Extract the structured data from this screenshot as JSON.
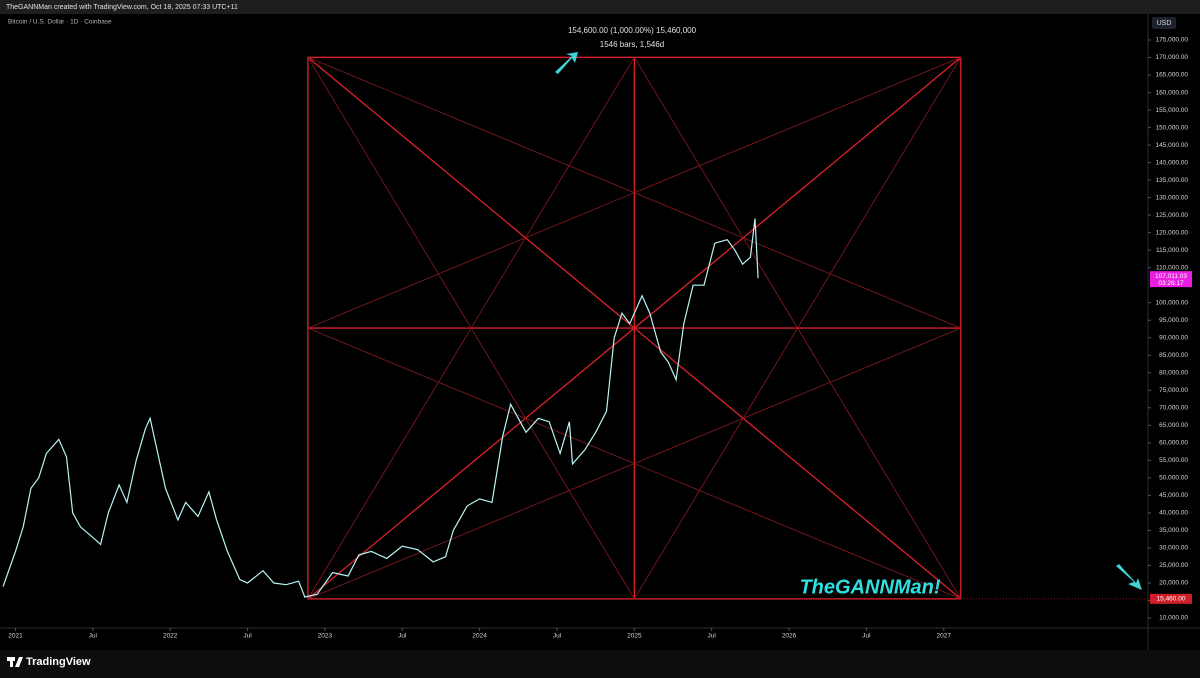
{
  "header": {
    "credit": "TheGANNMan created with TradingView.com, Oct 18, 2025 07:33 UTC+11",
    "brand": "TradingView"
  },
  "chart_data": {
    "type": "line",
    "series": [
      {
        "name": "Bitcoin / U.S. Dollar · 1D · Coinbase",
        "color": "#b8f4f4",
        "x": [
          2020.92,
          2021.0,
          2021.05,
          2021.1,
          2021.15,
          2021.2,
          2021.28,
          2021.33,
          2021.37,
          2021.42,
          2021.5,
          2021.55,
          2021.6,
          2021.67,
          2021.72,
          2021.78,
          2021.84,
          2021.87,
          2021.92,
          2021.97,
          2022.05,
          2022.1,
          2022.18,
          2022.25,
          2022.3,
          2022.37,
          2022.45,
          2022.5,
          2022.6,
          2022.67,
          2022.75,
          2022.83,
          2022.87,
          2022.95,
          2023.05,
          2023.15,
          2023.22,
          2023.3,
          2023.4,
          2023.5,
          2023.6,
          2023.7,
          2023.78,
          2023.83,
          2023.92,
          2024.0,
          2024.08,
          2024.15,
          2024.2,
          2024.3,
          2024.38,
          2024.45,
          2024.52,
          2024.58,
          2024.6,
          2024.68,
          2024.75,
          2024.82,
          2024.87,
          2024.92,
          2024.97,
          2025.05,
          2025.1,
          2025.17,
          2025.22,
          2025.27,
          2025.32,
          2025.38,
          2025.45,
          2025.52,
          2025.6,
          2025.65,
          2025.7,
          2025.75,
          2025.78,
          2025.8
        ],
        "values": [
          19000,
          29000,
          36000,
          47000,
          50000,
          57000,
          61000,
          56000,
          40000,
          36000,
          33000,
          31000,
          40000,
          48000,
          43000,
          55000,
          64000,
          67000,
          57000,
          47000,
          38000,
          43000,
          39000,
          46000,
          38000,
          29000,
          21000,
          20000,
          23500,
          20000,
          19500,
          20500,
          16000,
          16800,
          23000,
          22000,
          28000,
          29000,
          27000,
          30500,
          29500,
          26000,
          27500,
          35000,
          42000,
          44000,
          43000,
          62000,
          71000,
          63000,
          67000,
          66000,
          57000,
          66000,
          54000,
          58000,
          63000,
          69000,
          90000,
          97000,
          94000,
          102000,
          97000,
          86000,
          83000,
          78000,
          94000,
          105000,
          105000,
          117000,
          118000,
          115000,
          111000,
          113000,
          124000,
          107011.03
        ]
      }
    ],
    "current_price": {
      "value": 107011.03,
      "label": "107,011.03"
    },
    "countdown": "03:26:17",
    "currency": "USD",
    "gann_box": {
      "x0": 2022.89,
      "x1": 2027.11,
      "y0": {
        "value": 15460,
        "label": "15,460.00"
      },
      "y1": 170060,
      "range_label": "154,600.00 (1,000.00%) 15,460,000",
      "span_label": "1546 bars, 1,546d",
      "watermark": "TheGANNMan!"
    },
    "xlim": [
      2020.9,
      2028.32
    ],
    "ylim": [
      7145,
      182420
    ],
    "xticks": [
      2021,
      {
        "value": 2021.5,
        "label": "Jul"
      },
      2022,
      {
        "value": 2022.5,
        "label": "Jul"
      },
      2023,
      {
        "value": 2023.5,
        "label": "Jul"
      },
      2024,
      {
        "value": 2024.5,
        "label": "Jul"
      },
      2025,
      {
        "value": 2025.5,
        "label": "Jul"
      },
      2026,
      {
        "value": 2026.5,
        "label": "Jul"
      },
      2027
    ],
    "yticks": [
      {
        "value": 10000,
        "label": "10,000.00"
      },
      {
        "value": 15000,
        "label": "15,000.00"
      },
      {
        "value": 20000,
        "label": "20,000.00"
      },
      {
        "value": 25000,
        "label": "25,000.00"
      },
      {
        "value": 30000,
        "label": "30,000.00"
      },
      {
        "value": 35000,
        "label": "35,000.00"
      },
      {
        "value": 40000,
        "label": "40,000.00"
      },
      {
        "value": 45000,
        "label": "45,000.00"
      },
      {
        "value": 50000,
        "label": "50,000.00"
      },
      {
        "value": 55000,
        "label": "55,000.00"
      },
      {
        "value": 60000,
        "label": "60,000.00"
      },
      {
        "value": 65000,
        "label": "65,000.00"
      },
      {
        "value": 70000,
        "label": "70,000.00"
      },
      {
        "value": 75000,
        "label": "75,000.00"
      },
      {
        "value": 80000,
        "label": "80,000.00"
      },
      {
        "value": 85000,
        "label": "85,000.00"
      },
      {
        "value": 90000,
        "label": "90,000.00"
      },
      {
        "value": 95000,
        "label": "95,000.00"
      },
      {
        "value": 100000,
        "label": "100,000.00"
      },
      {
        "value": 110000,
        "label": "110,000.00"
      },
      {
        "value": 115000,
        "label": "115,000.00"
      },
      {
        "value": 120000,
        "label": "120,000.00"
      },
      {
        "value": 125000,
        "label": "125,000.00"
      },
      {
        "value": 130000,
        "label": "130,000.00"
      },
      {
        "value": 135000,
        "label": "135,000.00"
      },
      {
        "value": 140000,
        "label": "140,000.00"
      },
      {
        "value": 145000,
        "label": "145,000.00"
      },
      {
        "value": 150000,
        "label": "150,000.00"
      },
      {
        "value": 155000,
        "label": "155,000.00"
      },
      {
        "value": 160000,
        "label": "160,000.00"
      },
      {
        "value": 165000,
        "label": "165,000.00"
      },
      {
        "value": 170000,
        "label": "170,000.00"
      },
      {
        "value": 175000,
        "label": "175,000.00"
      }
    ]
  }
}
